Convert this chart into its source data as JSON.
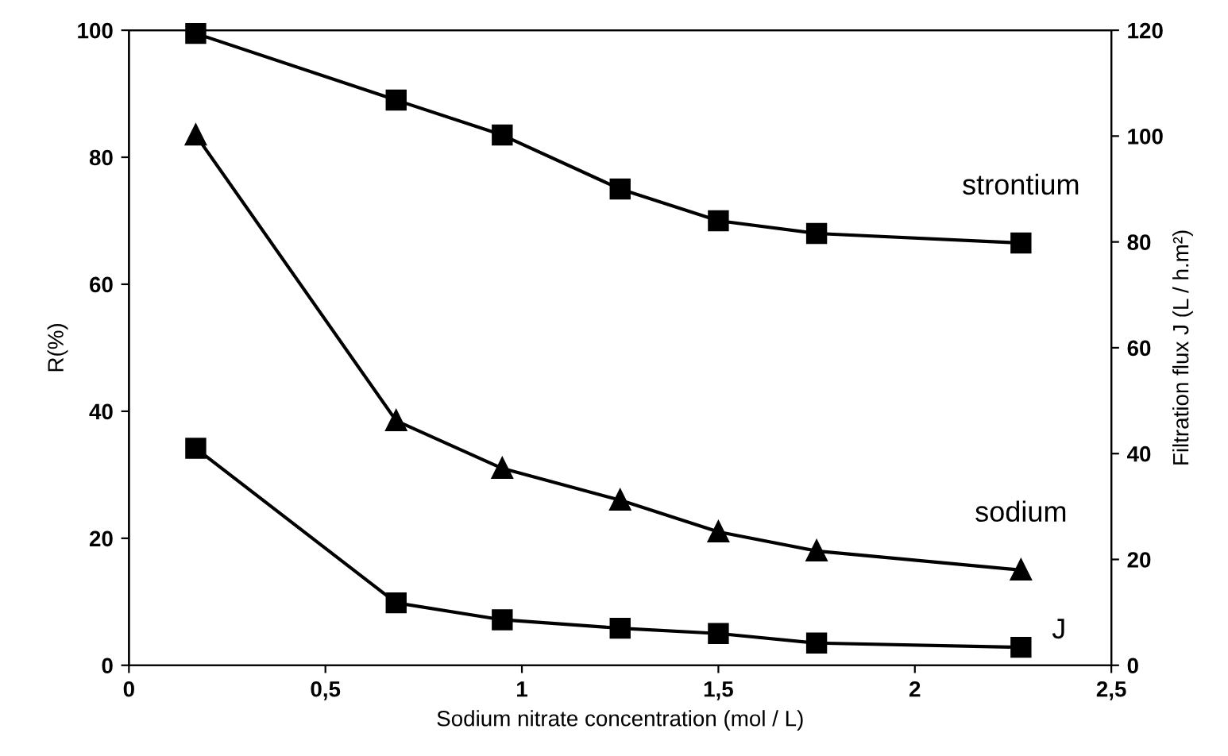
{
  "chart_data": {
    "type": "line",
    "xlabel": "Sodium nitrate concentration (mol / L)",
    "ylabel": "R(%)",
    "y2label": "Filtration flux J (L / h.m²)",
    "x": [
      0.17,
      0.68,
      0.95,
      1.25,
      1.5,
      1.75,
      2.27
    ],
    "series": [
      {
        "name": "strontium",
        "color": "#000000",
        "marker": "square",
        "values": [
          99.5,
          89,
          83.5,
          75,
          70,
          68,
          66.5
        ]
      },
      {
        "name": "sodium",
        "color": "#000000",
        "marker": "triangle",
        "values": [
          83.5,
          38.5,
          31,
          26,
          21,
          18,
          15
        ]
      },
      {
        "name": "J",
        "color": "#000000",
        "marker": "square",
        "axis": "y2",
        "values": [
          41,
          11.8,
          8.6,
          7,
          6,
          4.2,
          3.4
        ]
      }
    ],
    "xlim": [
      0,
      2.5
    ],
    "xticks": [
      0,
      {
        "value": 0.5,
        "label": "0,5"
      },
      1,
      {
        "value": 1.5,
        "label": "1,5"
      },
      2,
      {
        "value": 2.5,
        "label": "2,5"
      }
    ],
    "ylim": [
      0,
      100
    ],
    "yticks": [
      0,
      20,
      40,
      60,
      80,
      100
    ],
    "y2lim": [
      0,
      120
    ],
    "y2ticks": [
      0,
      20,
      40,
      60,
      80,
      100,
      120
    ],
    "grid": false,
    "legend": false,
    "line_style": "solid"
  }
}
